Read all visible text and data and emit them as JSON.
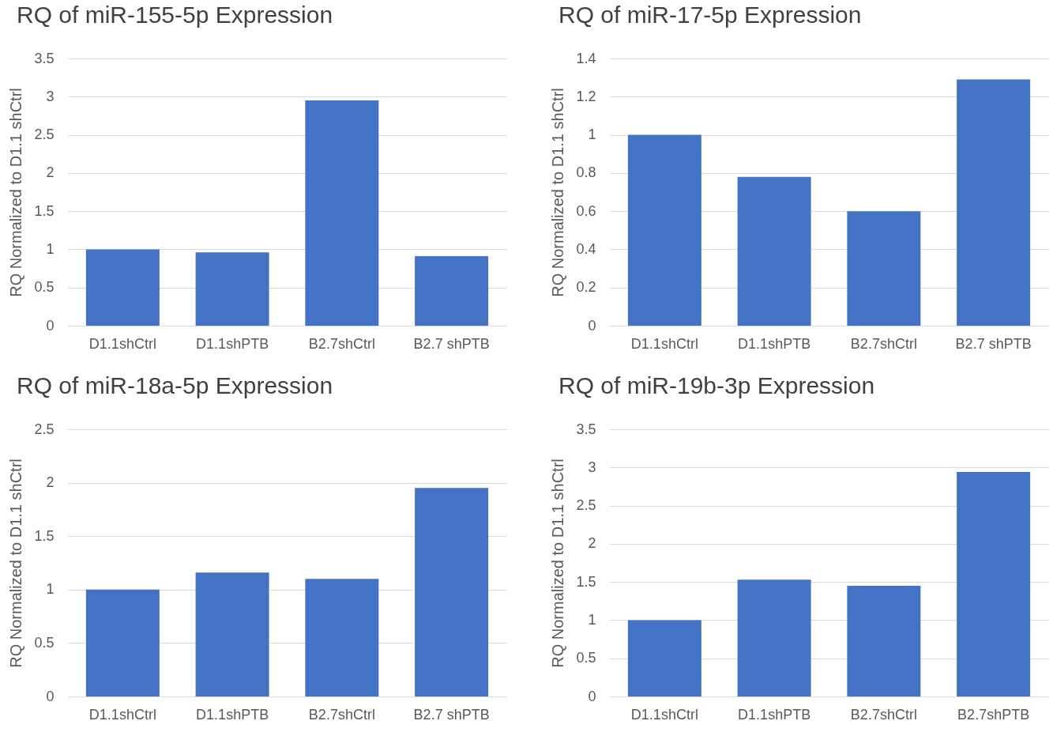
{
  "chart_data": [
    {
      "type": "bar",
      "title": "RQ of miR-155-5p Expression",
      "ylabel": "RQ Normalized to D1.1 shCtrl",
      "categories": [
        "D1.1shCtrl",
        "D1.1shPTB",
        "B2.7shCtrl",
        "B2.7 shPTB"
      ],
      "values": [
        1.0,
        0.96,
        2.95,
        0.91
      ],
      "color": "#4472c4",
      "ylim": [
        0,
        3.5
      ],
      "yticks": [
        0,
        0.5,
        1,
        1.5,
        2,
        2.5,
        3,
        3.5
      ],
      "grid": "y"
    },
    {
      "type": "bar",
      "title": "RQ of miR-17-5p Expression",
      "ylabel": "RQ Normalized to D1.1 shCtrl",
      "categories": [
        "D1.1shCtrl",
        "D1.1shPTB",
        "B2.7shCtrl",
        "B2.7 shPTB"
      ],
      "values": [
        1.0,
        0.78,
        0.6,
        1.29
      ],
      "color": "#4472c4",
      "ylim": [
        0,
        1.4
      ],
      "yticks": [
        0,
        0.2,
        0.4,
        0.6,
        0.8,
        1,
        1.2,
        1.4
      ],
      "grid": "y"
    },
    {
      "type": "bar",
      "title": "RQ of miR-18a-5p Expression",
      "ylabel": "RQ Normalized to D1.1 shCtrl",
      "categories": [
        "D1.1shCtrl",
        "D1.1shPTB",
        "B2.7shCtrl",
        "B2.7 shPTB"
      ],
      "values": [
        1.0,
        1.16,
        1.1,
        1.95
      ],
      "color": "#4472c4",
      "ylim": [
        0,
        2.5
      ],
      "yticks": [
        0,
        0.5,
        1,
        1.5,
        2,
        2.5
      ],
      "grid": "y"
    },
    {
      "type": "bar",
      "title": "RQ of miR-19b-3p Expression",
      "ylabel": "RQ Normalized to D1.1 shCtrl",
      "categories": [
        "D1.1shCtrl",
        "D1.1shPTB",
        "B2.7shCtrl",
        "B2.7shPTB"
      ],
      "values": [
        1.0,
        1.53,
        1.45,
        2.94
      ],
      "color": "#4472c4",
      "ylim": [
        0,
        3.5
      ],
      "yticks": [
        0,
        0.5,
        1,
        1.5,
        2,
        2.5,
        3,
        3.5
      ],
      "grid": "y"
    }
  ]
}
